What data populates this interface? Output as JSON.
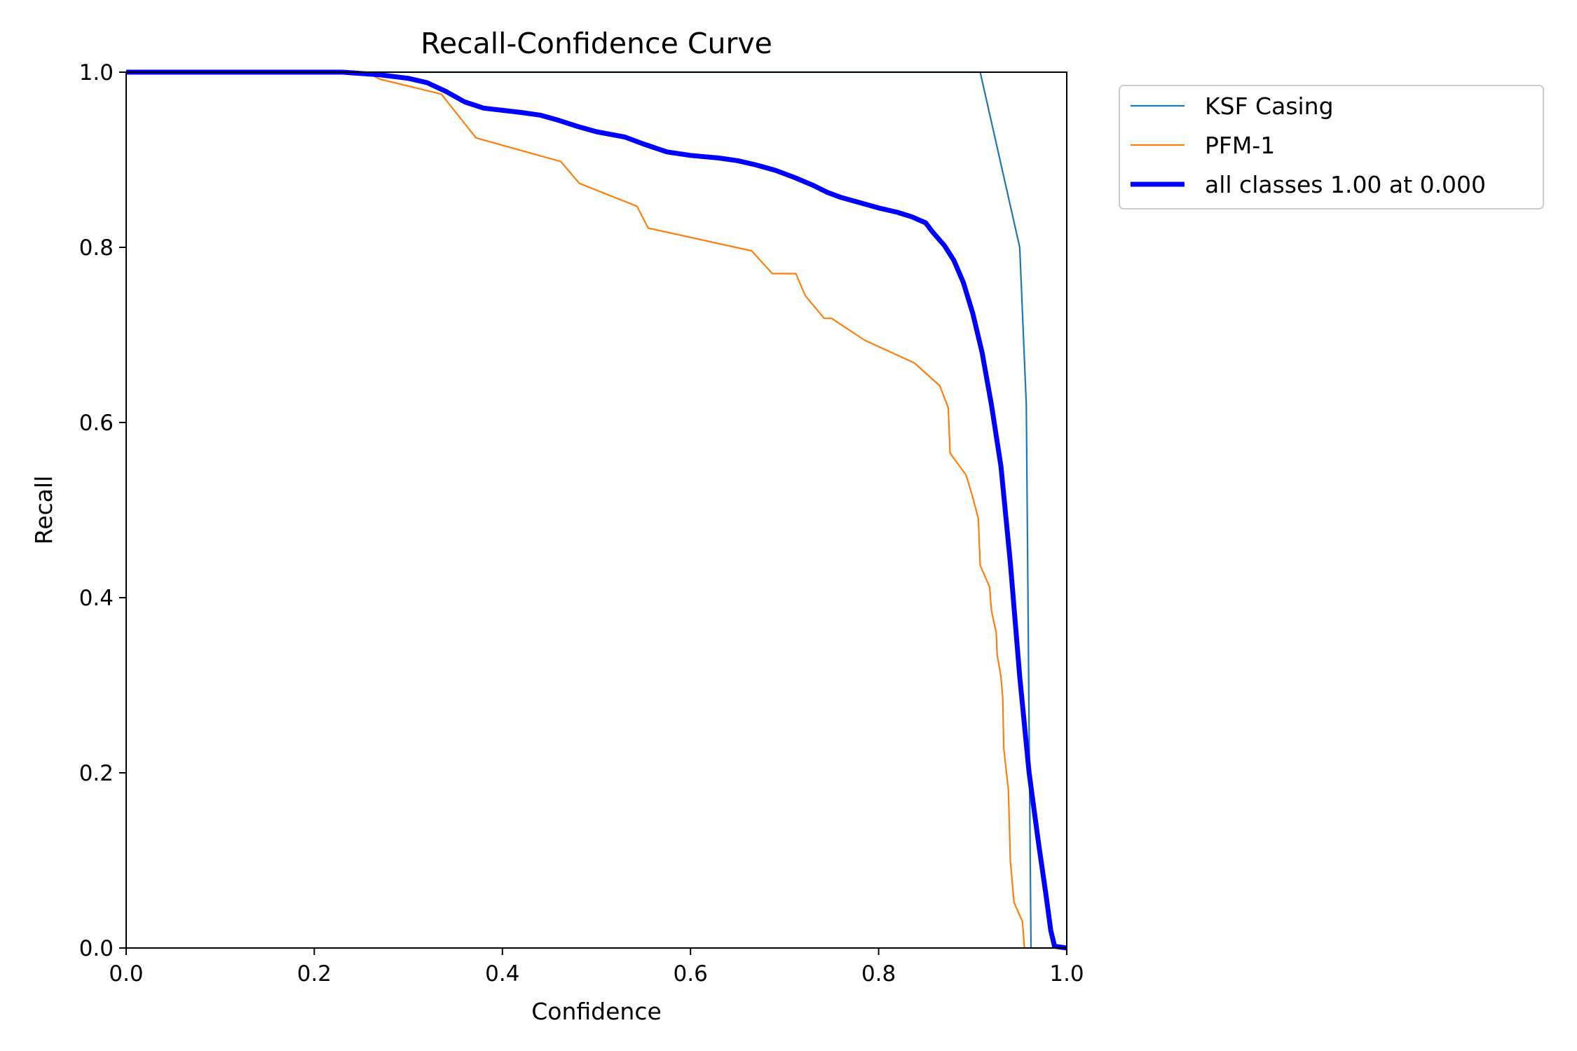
{
  "chart_data": {
    "type": "line",
    "title": "Recall-Confidence Curve",
    "xlabel": "Confidence",
    "ylabel": "Recall",
    "xlim": [
      0,
      1
    ],
    "ylim": [
      0,
      1
    ],
    "grid": false,
    "legend_position": "outside top-right",
    "x_ticks": [
      "0.0",
      "0.2",
      "0.4",
      "0.6",
      "0.8",
      "1.0"
    ],
    "y_ticks": [
      "0.0",
      "0.2",
      "0.4",
      "0.6",
      "0.8",
      "1.0"
    ],
    "series": [
      {
        "name": "KSF Casing",
        "color": "#1f77b4",
        "line_weight": "thin",
        "points": [
          [
            0.0,
            1.0
          ],
          [
            0.908,
            1.0
          ],
          [
            0.95,
            0.8
          ],
          [
            0.957,
            0.62
          ],
          [
            0.962,
            0.0
          ],
          [
            1.0,
            0.0
          ]
        ]
      },
      {
        "name": "PFM-1",
        "color": "#ff7f0e",
        "line_weight": "thin",
        "points": [
          [
            0.0,
            1.0
          ],
          [
            0.255,
            1.0
          ],
          [
            0.27,
            0.992
          ],
          [
            0.335,
            0.975
          ],
          [
            0.372,
            0.925
          ],
          [
            0.462,
            0.898
          ],
          [
            0.482,
            0.873
          ],
          [
            0.543,
            0.847
          ],
          [
            0.555,
            0.822
          ],
          [
            0.665,
            0.796
          ],
          [
            0.687,
            0.77
          ],
          [
            0.712,
            0.77
          ],
          [
            0.722,
            0.745
          ],
          [
            0.742,
            0.719
          ],
          [
            0.75,
            0.719
          ],
          [
            0.785,
            0.694
          ],
          [
            0.838,
            0.668
          ],
          [
            0.865,
            0.642
          ],
          [
            0.874,
            0.617
          ],
          [
            0.876,
            0.565
          ],
          [
            0.893,
            0.54
          ],
          [
            0.9,
            0.515
          ],
          [
            0.906,
            0.49
          ],
          [
            0.908,
            0.437
          ],
          [
            0.918,
            0.412
          ],
          [
            0.92,
            0.385
          ],
          [
            0.925,
            0.36
          ],
          [
            0.926,
            0.335
          ],
          [
            0.93,
            0.31
          ],
          [
            0.932,
            0.285
          ],
          [
            0.933,
            0.228
          ],
          [
            0.938,
            0.18
          ],
          [
            0.94,
            0.1
          ],
          [
            0.944,
            0.052
          ],
          [
            0.953,
            0.03
          ],
          [
            0.955,
            0.0
          ],
          [
            1.0,
            0.0
          ]
        ]
      },
      {
        "name": "all classes 1.00 at 0.000",
        "color": "#0000ff",
        "line_weight": "bold",
        "points": [
          [
            0.0,
            1.0
          ],
          [
            0.23,
            1.0
          ],
          [
            0.27,
            0.997
          ],
          [
            0.3,
            0.993
          ],
          [
            0.32,
            0.988
          ],
          [
            0.34,
            0.978
          ],
          [
            0.36,
            0.966
          ],
          [
            0.38,
            0.959
          ],
          [
            0.42,
            0.954
          ],
          [
            0.44,
            0.951
          ],
          [
            0.46,
            0.945
          ],
          [
            0.48,
            0.938
          ],
          [
            0.5,
            0.932
          ],
          [
            0.53,
            0.926
          ],
          [
            0.55,
            0.918
          ],
          [
            0.575,
            0.909
          ],
          [
            0.6,
            0.905
          ],
          [
            0.63,
            0.902
          ],
          [
            0.65,
            0.899
          ],
          [
            0.67,
            0.894
          ],
          [
            0.69,
            0.888
          ],
          [
            0.71,
            0.88
          ],
          [
            0.73,
            0.871
          ],
          [
            0.745,
            0.863
          ],
          [
            0.76,
            0.857
          ],
          [
            0.78,
            0.851
          ],
          [
            0.8,
            0.845
          ],
          [
            0.82,
            0.84
          ],
          [
            0.835,
            0.835
          ],
          [
            0.85,
            0.828
          ],
          [
            0.857,
            0.818
          ],
          [
            0.87,
            0.802
          ],
          [
            0.88,
            0.785
          ],
          [
            0.89,
            0.76
          ],
          [
            0.9,
            0.725
          ],
          [
            0.91,
            0.68
          ],
          [
            0.92,
            0.62
          ],
          [
            0.93,
            0.55
          ],
          [
            0.94,
            0.44
          ],
          [
            0.95,
            0.31
          ],
          [
            0.96,
            0.2
          ],
          [
            0.97,
            0.12
          ],
          [
            0.978,
            0.06
          ],
          [
            0.983,
            0.02
          ],
          [
            0.987,
            0.002
          ],
          [
            1.0,
            0.0
          ]
        ]
      }
    ]
  }
}
